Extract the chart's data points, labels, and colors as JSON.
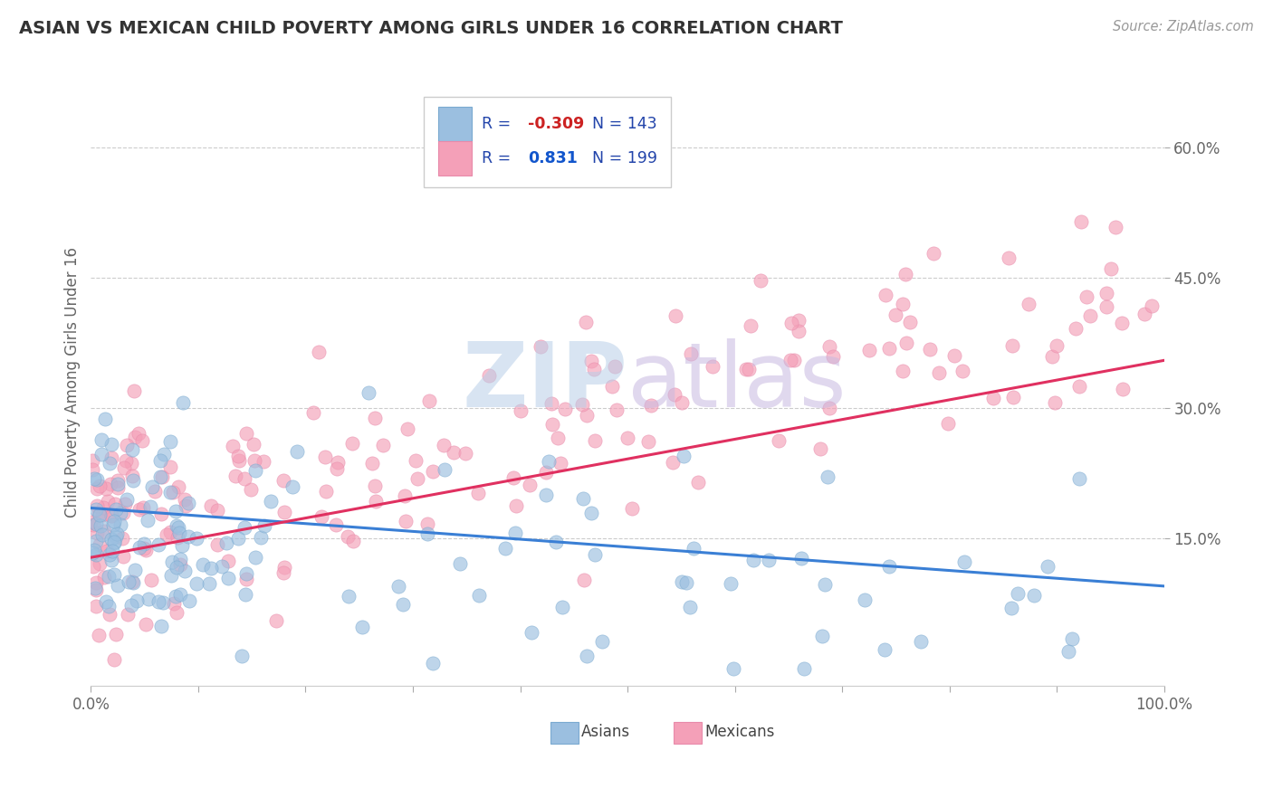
{
  "title": "ASIAN VS MEXICAN CHILD POVERTY AMONG GIRLS UNDER 16 CORRELATION CHART",
  "source_text": "Source: ZipAtlas.com",
  "ylabel": "Child Poverty Among Girls Under 16",
  "xlim": [
    0.0,
    1.0
  ],
  "ylim": [
    -0.02,
    0.68
  ],
  "xticks": [
    0.0,
    0.1,
    0.2,
    0.3,
    0.4,
    0.5,
    0.6,
    0.7,
    0.8,
    0.9,
    1.0
  ],
  "xticklabels": [
    "0.0%",
    "",
    "",
    "",
    "",
    "",
    "",
    "",
    "",
    "",
    "100.0%"
  ],
  "yticks_right": [
    0.15,
    0.3,
    0.45,
    0.6
  ],
  "yticklabels_right": [
    "15.0%",
    "30.0%",
    "45.0%",
    "60.0%"
  ],
  "asian_color": "#9bbfe0",
  "asian_edge_color": "#7aaad0",
  "mexican_color": "#f4a0b8",
  "mexican_edge_color": "#e88aaa",
  "asian_line_color": "#3a7fd5",
  "mexican_line_color": "#e03060",
  "asian_R": -0.309,
  "asian_N": 143,
  "mexican_R": 0.831,
  "mexican_N": 199,
  "legend_text_color": "#2244aa",
  "asian_R_color": "#cc2222",
  "mexican_R_color": "#1155cc",
  "title_color": "#333333",
  "grid_color": "#cccccc",
  "background_color": "#ffffff",
  "dot_size": 120,
  "alpha": 0.65,
  "asian_line_start_y": 0.185,
  "asian_line_end_y": 0.095,
  "mexican_line_start_y": 0.128,
  "mexican_line_end_y": 0.355
}
